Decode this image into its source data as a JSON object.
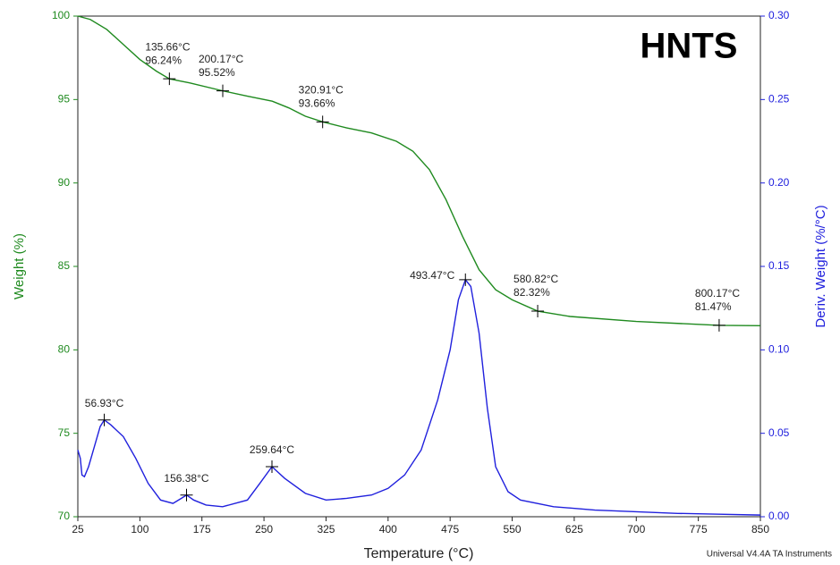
{
  "chart_data": {
    "type": "line",
    "title": "HNTS",
    "xlabel": "Temperature (°C)",
    "ylabel": "Weight (%)",
    "y2label": "Deriv. Weight (%/°C)",
    "footer": "Universal V4.4A TA Instruments",
    "xlim": [
      25,
      850
    ],
    "xticks": [
      25,
      100,
      175,
      250,
      325,
      400,
      475,
      550,
      625,
      700,
      775,
      850
    ],
    "ylim": [
      70,
      100
    ],
    "yticks": [
      70,
      75,
      80,
      85,
      90,
      95,
      100
    ],
    "y2lim": [
      0,
      0.3
    ],
    "y2ticks": [
      {
        "value": 0,
        "label": "0.00"
      },
      0.05,
      {
        "value": 0.1,
        "label": "0.10"
      },
      0.15,
      {
        "value": 0.2,
        "label": "0.20"
      },
      0.25,
      {
        "value": 0.3,
        "label": "0.30"
      }
    ],
    "ycolor": "#1f8a1f",
    "y2color": "#2020dd",
    "series": [
      {
        "color": "#1f8a1f",
        "axis": "y",
        "x": [
          25,
          40,
          60,
          80,
          100,
          120,
          135.66,
          160,
          200.17,
          230,
          260,
          280,
          300,
          320.91,
          350,
          380,
          410,
          430,
          450,
          470,
          490,
          510,
          530,
          550,
          580.82,
          620,
          700,
          800.17,
          850
        ],
        "values": [
          100,
          99.8,
          99.2,
          98.3,
          97.4,
          96.7,
          96.24,
          96.0,
          95.52,
          95.2,
          94.9,
          94.5,
          94.0,
          93.66,
          93.3,
          93.0,
          92.5,
          91.9,
          90.8,
          89.0,
          86.8,
          84.8,
          83.6,
          83.0,
          82.32,
          82.0,
          81.7,
          81.47,
          81.45
        ]
      },
      {
        "color": "#2020dd",
        "axis": "y2",
        "x": [
          25,
          28,
          30,
          33,
          38,
          45,
          52,
          56.93,
          65,
          80,
          95,
          110,
          125,
          140,
          150,
          156.38,
          165,
          180,
          200,
          230,
          245,
          259.64,
          275,
          300,
          325,
          350,
          380,
          400,
          420,
          440,
          460,
          475,
          485,
          493.47,
          500,
          510,
          520,
          530,
          545,
          560,
          600,
          650,
          700,
          750,
          800,
          850
        ],
        "values": [
          0.04,
          0.035,
          0.025,
          0.024,
          0.03,
          0.042,
          0.054,
          0.058,
          0.055,
          0.048,
          0.035,
          0.02,
          0.01,
          0.008,
          0.011,
          0.013,
          0.01,
          0.007,
          0.006,
          0.01,
          0.02,
          0.03,
          0.023,
          0.014,
          0.01,
          0.011,
          0.013,
          0.017,
          0.025,
          0.04,
          0.07,
          0.1,
          0.13,
          0.142,
          0.138,
          0.11,
          0.065,
          0.03,
          0.015,
          0.01,
          0.006,
          0.004,
          0.003,
          0.002,
          0.0015,
          0.001
        ]
      }
    ],
    "annotations": [
      {
        "axis": "y",
        "x": 135.66,
        "y": 96.24,
        "labels": [
          "135.66°C",
          "96.24%"
        ]
      },
      {
        "axis": "y",
        "x": 200.17,
        "y": 95.52,
        "labels": [
          "200.17°C",
          "95.52%"
        ]
      },
      {
        "axis": "y",
        "x": 320.91,
        "y": 93.66,
        "labels": [
          "320.91°C",
          "93.66%"
        ]
      },
      {
        "axis": "y",
        "x": 580.82,
        "y": 82.32,
        "labels": [
          "580.82°C",
          "82.32%"
        ]
      },
      {
        "axis": "y",
        "x": 800.17,
        "y": 81.47,
        "labels": [
          "800.17°C",
          "81.47%"
        ]
      },
      {
        "axis": "y2",
        "x": 56.93,
        "y": 0.058,
        "labels": [
          "56.93°C"
        ]
      },
      {
        "axis": "y2",
        "x": 156.38,
        "y": 0.013,
        "labels": [
          "156.38°C"
        ]
      },
      {
        "axis": "y2",
        "x": 259.64,
        "y": 0.03,
        "labels": [
          "259.64°C"
        ]
      },
      {
        "axis": "y2",
        "x": 493.47,
        "y": 0.142,
        "labels": [
          "493.47°C"
        ]
      }
    ]
  }
}
